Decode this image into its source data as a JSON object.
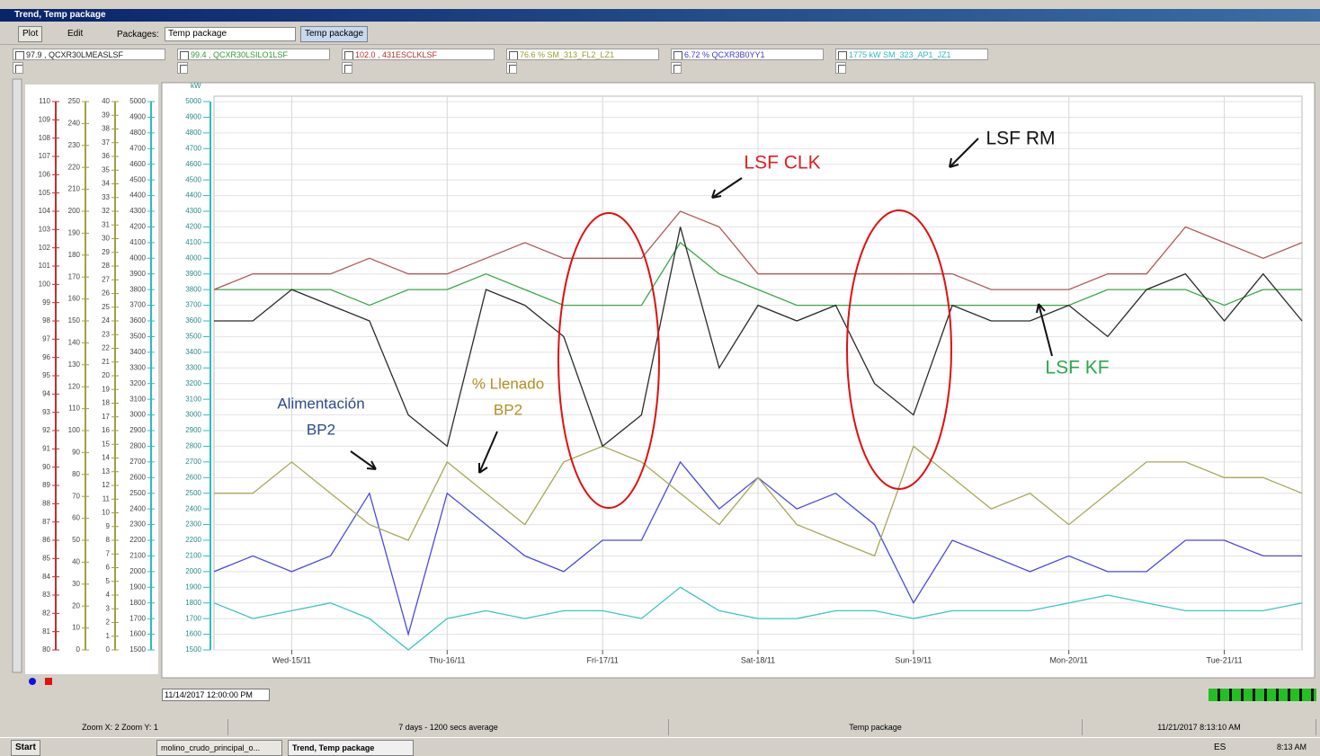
{
  "window": {
    "title": "Trend, Temp package"
  },
  "toolbar": {
    "plot": "Plot",
    "edit": "Edit",
    "packages_label": "Packages:",
    "package_select": "Temp package",
    "package_button": "Temp package"
  },
  "pens": [
    {
      "label": "97.9 , QCXR30LMEASLSF",
      "color": "#222222"
    },
    {
      "label": "99.4 , QCXR30LSILO1LSF",
      "color": "#2e9a3c"
    },
    {
      "label": "102.0 , 431ESCLKLSF",
      "color": "#b03030"
    },
    {
      "label": "76.6 % SM_313_FL2_LZ1",
      "color": "#9a9a30"
    },
    {
      "label": "6.72 % QCXR3B0YY1",
      "color": "#3c3cd0"
    },
    {
      "label": "1775 kW SM_323_AP1_JZ1",
      "color": "#2bbcbc"
    }
  ],
  "chart_data": {
    "type": "line",
    "y_label": "kW",
    "x": [
      0,
      0.25,
      0.5,
      0.75,
      1,
      1.25,
      1.5,
      1.75,
      2,
      2.25,
      2.5,
      2.75,
      3,
      3.25,
      3.5,
      3.75,
      4,
      4.25,
      4.5,
      4.75,
      5,
      5.25,
      5.5,
      5.75,
      6,
      6.25,
      6.5,
      6.75,
      7
    ],
    "xlim": [
      0,
      7
    ],
    "xticks": [
      {
        "value": 0.5,
        "label": "Wed-15/11"
      },
      {
        "value": 1.5,
        "label": "Thu-16/11"
      },
      {
        "value": 2.5,
        "label": "Fri-17/11"
      },
      {
        "value": 3.5,
        "label": "Sat-18/11"
      },
      {
        "value": 4.5,
        "label": "Sun-19/11"
      },
      {
        "value": 5.5,
        "label": "Mon-20/11"
      },
      {
        "value": 6.5,
        "label": "Tue-21/11"
      }
    ],
    "ylim": [
      1500,
      5000
    ],
    "yticks": [
      1500,
      1600,
      1700,
      1800,
      1900,
      2000,
      2100,
      2200,
      2300,
      2400,
      2500,
      2600,
      2700,
      2800,
      2900,
      3000,
      3100,
      3200,
      3300,
      3400,
      3500,
      3600,
      3700,
      3800,
      3900,
      4000,
      4100,
      4200,
      4300,
      4400,
      4500,
      4600,
      4700,
      4800,
      4900,
      5000
    ],
    "grid": true,
    "series": [
      {
        "color": "#2a2a2a",
        "values": [
          3600,
          3600,
          3800,
          3700,
          3600,
          3000,
          2800,
          3800,
          3700,
          3500,
          2800,
          3000,
          4200,
          3300,
          3700,
          3600,
          3700,
          3200,
          3000,
          3700,
          3600,
          3600,
          3700,
          3500,
          3800,
          3900,
          3600,
          3900,
          3600
        ]
      },
      {
        "color": "#b05a5a",
        "values": [
          3800,
          3900,
          3900,
          3900,
          4000,
          3900,
          3900,
          4000,
          4100,
          4000,
          4000,
          4000,
          4300,
          4200,
          3900,
          3900,
          3900,
          3900,
          3900,
          3900,
          3800,
          3800,
          3800,
          3900,
          3900,
          4200,
          4100,
          4000,
          4100
        ]
      },
      {
        "color": "#3aa84a",
        "values": [
          3800,
          3800,
          3800,
          3800,
          3700,
          3800,
          3800,
          3900,
          3800,
          3700,
          3700,
          3700,
          4100,
          3900,
          3800,
          3700,
          3700,
          3700,
          3700,
          3700,
          3700,
          3700,
          3700,
          3800,
          3800,
          3800,
          3700,
          3800,
          3800
        ]
      },
      {
        "color": "#a8a858",
        "values": [
          2500,
          2500,
          2700,
          2500,
          2300,
          2200,
          2700,
          2500,
          2300,
          2700,
          2800,
          2700,
          2500,
          2300,
          2600,
          2300,
          2200,
          2100,
          2800,
          2600,
          2400,
          2500,
          2300,
          2500,
          2700,
          2700,
          2600,
          2600,
          2500
        ]
      },
      {
        "color": "#4a4ae0",
        "values": [
          2000,
          2100,
          2000,
          2100,
          2500,
          1600,
          2500,
          2300,
          2100,
          2000,
          2200,
          2200,
          2700,
          2400,
          2600,
          2400,
          2500,
          2300,
          1800,
          2200,
          2100,
          2000,
          2100,
          2000,
          2000,
          2200,
          2200,
          2100,
          2100
        ]
      },
      {
        "color": "#3cc4c4",
        "values": [
          1800,
          1700,
          1750,
          1800,
          1700,
          1500,
          1700,
          1750,
          1700,
          1750,
          1750,
          1700,
          1900,
          1750,
          1700,
          1700,
          1750,
          1750,
          1700,
          1750,
          1750,
          1750,
          1800,
          1850,
          1800,
          1750,
          1750,
          1750,
          1800
        ]
      }
    ],
    "side_axes": [
      {
        "color": "#c03030",
        "lim": [
          80,
          110
        ],
        "ticks": [
          80,
          81,
          82,
          83,
          84,
          85,
          86,
          87,
          88,
          89,
          90,
          91,
          92,
          93,
          94,
          95,
          96,
          97,
          98,
          99,
          100,
          101,
          102,
          103,
          104,
          105,
          106,
          107,
          108,
          109,
          110
        ]
      },
      {
        "color": "#a0a040",
        "lim": [
          0,
          250
        ],
        "ticks": [
          0,
          10,
          20,
          30,
          40,
          50,
          60,
          70,
          80,
          90,
          100,
          110,
          120,
          130,
          140,
          150,
          160,
          170,
          180,
          190,
          200,
          210,
          220,
          230,
          240,
          250
        ]
      },
      {
        "color": "#a0a040",
        "lim": [
          0,
          40
        ],
        "ticks": [
          0,
          1,
          2,
          3,
          4,
          5,
          6,
          7,
          8,
          9,
          10,
          11,
          12,
          13,
          14,
          15,
          16,
          17,
          18,
          19,
          20,
          21,
          22,
          23,
          24,
          25,
          26,
          27,
          28,
          29,
          30,
          31,
          32,
          33,
          34,
          35,
          36,
          37,
          38,
          39,
          40
        ]
      },
      {
        "color": "#2bbcbc",
        "lim": [
          1500,
          5000
        ],
        "ticks": [
          1500,
          1600,
          1700,
          1800,
          1900,
          2000,
          2100,
          2200,
          2300,
          2400,
          2500,
          2600,
          2700,
          2800,
          2900,
          3000,
          3100,
          3200,
          3300,
          3400,
          3500,
          3600,
          3700,
          3800,
          3900,
          4000,
          4100,
          4200,
          4300,
          4400,
          4500,
          4600,
          4700,
          4800,
          4900,
          5000
        ]
      }
    ],
    "annotations": [
      {
        "lines": [
          "LSF CLK"
        ],
        "color": "#e02020"
      },
      {
        "lines": [
          "LSF RM"
        ],
        "color": "#111111"
      },
      {
        "lines": [
          "LSF KF"
        ],
        "color": "#2aa84a"
      },
      {
        "lines": [
          "% Llenado",
          "BP2"
        ],
        "color": "#b09020"
      },
      {
        "lines": [
          "Alimentación",
          "BP2"
        ],
        "color": "#2a4a8a"
      }
    ]
  },
  "navigation": {
    "start_time": "11/14/2017 12:00:00 PM"
  },
  "status_bar": [
    "Zoom X: 2 Zoom Y: 1",
    "7 days - 1200 secs average",
    "Temp package",
    "11/21/2017 8:13:10 AM"
  ],
  "taskbar": {
    "start": "Start",
    "items": [
      "molino_crudo_principal_o...",
      "Trend, Temp package"
    ],
    "language": "ES",
    "clock": "8:13 AM"
  }
}
